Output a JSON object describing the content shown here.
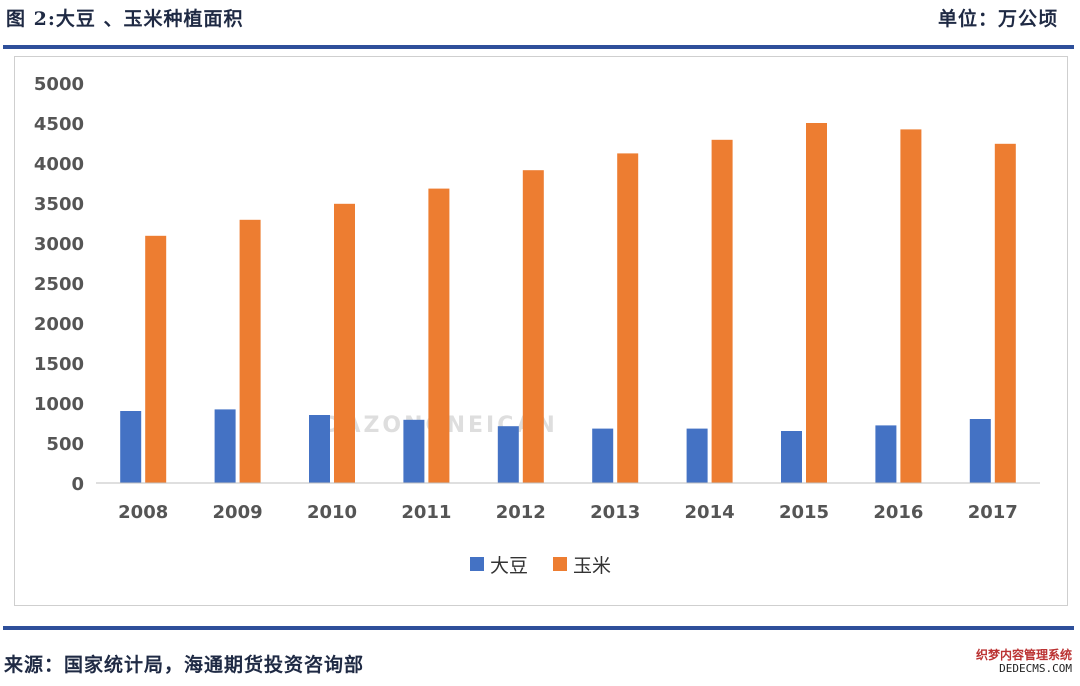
{
  "header": {
    "title": "图 2:大豆 、玉米种植面积",
    "unit": "单位：万公顷"
  },
  "footer": {
    "source": "来源：国家统计局，海通期货投资咨询部",
    "site_watermark_line1": "织梦内容管理系统",
    "site_watermark_line2": "DEDECMS.COM"
  },
  "watermark": {
    "text": "DAZONGNEICAN"
  },
  "colors": {
    "soybean": "#4472c4",
    "corn": "#ed7d31",
    "rule": "#2e4f9a"
  },
  "chart_data": {
    "type": "bar",
    "title": "大豆 、玉米种植面积",
    "xlabel": "",
    "ylabel": "",
    "categories": [
      "2008",
      "2009",
      "2010",
      "2011",
      "2012",
      "2013",
      "2014",
      "2015",
      "2016",
      "2017"
    ],
    "series": [
      {
        "name": "大豆",
        "values": [
          900,
          920,
          850,
          790,
          710,
          680,
          680,
          650,
          720,
          800
        ]
      },
      {
        "name": "玉米",
        "values": [
          3090,
          3290,
          3490,
          3680,
          3910,
          4120,
          4290,
          4500,
          4420,
          4240
        ]
      }
    ],
    "ylim": [
      0,
      5000
    ],
    "yticks": [
      0,
      500,
      1000,
      1500,
      2000,
      2500,
      3000,
      3500,
      4000,
      4500,
      5000
    ],
    "grid": false,
    "legend": "bottom-center"
  }
}
